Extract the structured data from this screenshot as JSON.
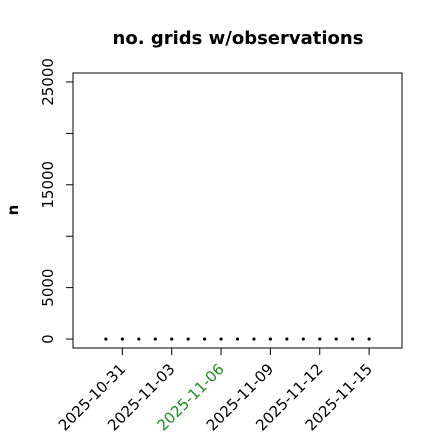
{
  "chart_data": {
    "type": "scatter",
    "title": "no. grids w/observations",
    "y_label": "n",
    "x": [
      "2025-10-30",
      "2025-10-31",
      "2025-11-01",
      "2025-11-02",
      "2025-11-03",
      "2025-11-04",
      "2025-11-05",
      "2025-11-06",
      "2025-11-07",
      "2025-11-08",
      "2025-11-09",
      "2025-11-10",
      "2025-11-11",
      "2025-11-12",
      "2025-11-13",
      "2025-11-14",
      "2025-11-15"
    ],
    "values": [
      0,
      0,
      0,
      0,
      0,
      0,
      0,
      0,
      0,
      0,
      0,
      0,
      0,
      0,
      0,
      0,
      0
    ],
    "color": "#000000",
    "xlim": [
      "2025-10-28",
      "2025-11-17"
    ],
    "xticks": [
      "2025-10-31",
      "2025-11-03",
      "2025-11-06",
      "2025-11-09",
      "2025-11-12",
      "2025-11-15"
    ],
    "xtick_colors": [
      "#000000",
      "#000000",
      "#228b22",
      "#000000",
      "#000000",
      "#000000"
    ],
    "ylim": [
      -870,
      25870
    ],
    "yticks": [
      0,
      5000,
      15000,
      25000
    ],
    "yticks_unlabeled": [
      10000,
      20000
    ]
  }
}
